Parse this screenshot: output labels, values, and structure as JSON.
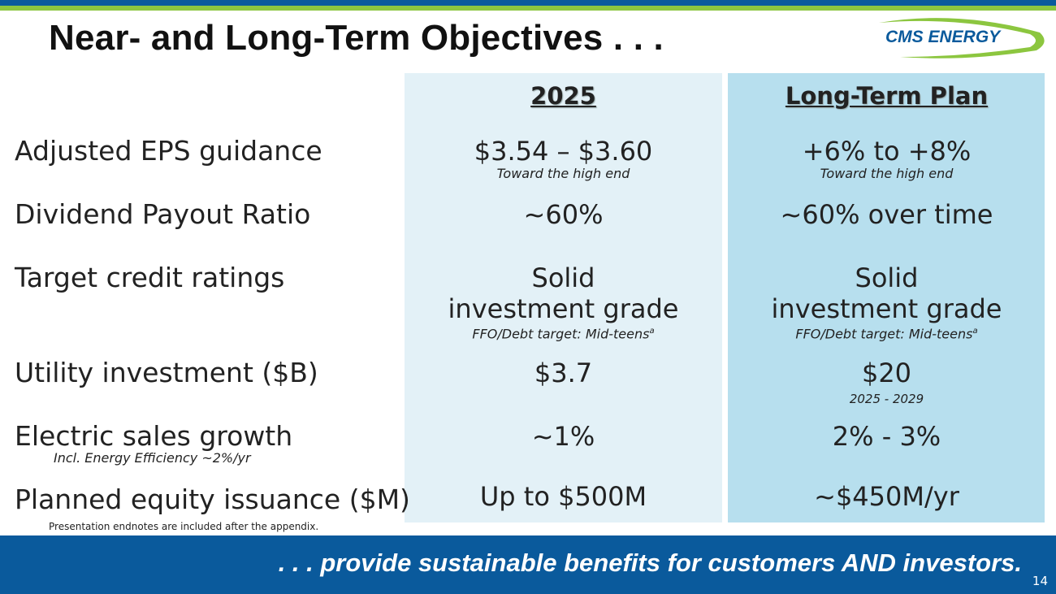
{
  "title": "Near- and Long-Term Objectives . . .",
  "logo_text": "CMS ENERGY",
  "columns": {
    "col1": "2025",
    "col2": "Long-Term Plan"
  },
  "rows": [
    {
      "label": "Adjusted EPS guidance",
      "sublabel": "",
      "col1": "$3.54 – $3.60",
      "col1_note": "Toward the high end",
      "col2": "+6% to +8%",
      "col2_note": "Toward the high end"
    },
    {
      "label": "Dividend Payout Ratio",
      "sublabel": "",
      "col1": "~60%",
      "col1_note": "",
      "col2": "~60% over time",
      "col2_note": ""
    },
    {
      "label": "Target credit ratings",
      "sublabel": "",
      "col1_line1": "Solid",
      "col1_line2": "investment grade",
      "col1_note": "FFO/Debt target: Mid-teens",
      "col1_sup": "a",
      "col2_line1": "Solid",
      "col2_line2": "investment grade",
      "col2_note": "FFO/Debt target: Mid-teens",
      "col2_sup": "a"
    },
    {
      "label": "Utility investment ($B)",
      "sublabel": "",
      "col1": "$3.7",
      "col1_note": "",
      "col2": "$20",
      "col2_note": "2025 - 2029"
    },
    {
      "label": "Electric sales growth",
      "sublabel": "Incl. Energy Efficiency ~2%/yr",
      "col1": "~1%",
      "col1_note": "",
      "col2": "2% - 3%",
      "col2_note": ""
    },
    {
      "label": "Planned equity issuance ($M)",
      "sublabel": "",
      "col1": "Up to $500M",
      "col1_note": "",
      "col2": "~$450M/yr",
      "col2_note": ""
    }
  ],
  "footnote": "Presentation endnotes are included after the appendix.",
  "tagline": ". . . provide sustainable benefits for customers AND investors.",
  "page_number": "14",
  "colors": {
    "primary_blue": "#0a5a9c",
    "accent_green": "#8cc63f",
    "col1_bg": "#e3f1f7",
    "col2_bg": "#b7dfee"
  }
}
